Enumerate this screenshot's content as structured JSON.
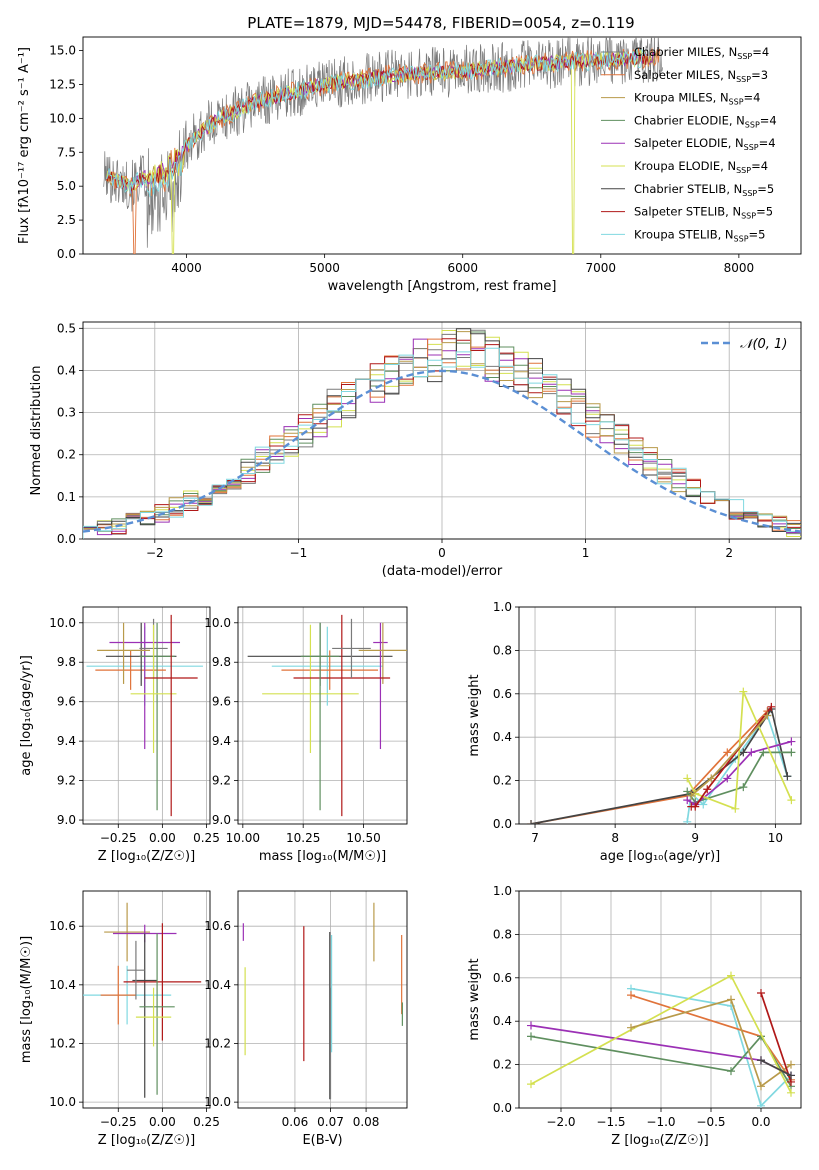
{
  "figure_title": "PLATE=1879, MJD=54478, FIBERID=0054, z=0.119",
  "models": [
    {
      "name": "Chabrier MILES, N",
      "sub": "SSP",
      "tail": "=4",
      "color": "#7a7a7a"
    },
    {
      "name": "Salpeter MILES, N",
      "sub": "SSP",
      "tail": "=3",
      "color": "#e0733a"
    },
    {
      "name": "Kroupa MILES, N",
      "sub": "SSP",
      "tail": "=4",
      "color": "#b89a4a"
    },
    {
      "name": "Chabrier ELODIE, N",
      "sub": "SSP",
      "tail": "=4",
      "color": "#5f8f5f"
    },
    {
      "name": "Salpeter ELODIE, N",
      "sub": "SSP",
      "tail": "=4",
      "color": "#9b30b5"
    },
    {
      "name": "Kroupa ELODIE, N",
      "sub": "SSP",
      "tail": "=4",
      "color": "#d4e050"
    },
    {
      "name": "Chabrier STELIB, N",
      "sub": "SSP",
      "tail": "=5",
      "color": "#444444"
    },
    {
      "name": "Salpeter STELIB, N",
      "sub": "SSP",
      "tail": "=5",
      "color": "#b01818"
    },
    {
      "name": "Kroupa STELIB, N",
      "sub": "SSP",
      "tail": "=5",
      "color": "#80d8e0"
    }
  ],
  "chart_data": [
    {
      "id": "spectrum",
      "type": "line",
      "xlabel": "wavelength [Angstrom, rest frame]",
      "ylabel": "Flux [fλ10⁻¹⁷ erg cm⁻² s⁻¹ A⁻¹]",
      "xlim": [
        3250,
        8450
      ],
      "ylim": [
        0,
        16
      ],
      "xticks": [
        4000,
        5000,
        6000,
        7000,
        8000
      ],
      "yticks": [
        0.0,
        2.5,
        5.0,
        7.5,
        10.0,
        12.5,
        15.0
      ],
      "ytick_labels": [
        "0.0",
        "2.5",
        "5.0",
        "7.5",
        "10.0",
        "12.5",
        "15.0"
      ],
      "legend": "top-right",
      "data_x_range": [
        3400,
        7450
      ],
      "continuum_anchors": {
        "x": [
          3400,
          3600,
          3800,
          4000,
          4200,
          4500,
          5000,
          5500,
          6000,
          6500,
          7000,
          7450
        ],
        "y": [
          5.8,
          5.0,
          6.5,
          8.0,
          9.8,
          11.2,
          12.5,
          13.2,
          13.5,
          14.0,
          14.3,
          14.5
        ]
      },
      "series": [
        {
          "model": 0,
          "noise": 1.9
        },
        {
          "model": 1,
          "noise": 0.8,
          "dips": [
            {
              "x": 3620,
              "y": 0
            }
          ]
        },
        {
          "model": 2,
          "noise": 0.5
        },
        {
          "model": 4,
          "noise": 0.5
        },
        {
          "model": 5,
          "noise": 0.6,
          "dips": [
            {
              "x": 3905,
              "y": 0
            },
            {
              "x": 6800,
              "y": 0
            }
          ]
        },
        {
          "model": 7,
          "noise": 0.5,
          "dips": [
            {
              "x": 7420,
              "y": 0
            }
          ]
        },
        {
          "model": 8,
          "noise": 0.7
        }
      ]
    },
    {
      "id": "residuals",
      "type": "histogram",
      "xlabel": "(data-model)/error",
      "ylabel": "Normed distribution",
      "xlim": [
        -2.5,
        2.5
      ],
      "ylim": [
        0,
        0.515
      ],
      "xticks": [
        -2,
        -1,
        0,
        1,
        2
      ],
      "xtick_labels": [
        "−2",
        "−1",
        "0",
        "1",
        "2"
      ],
      "yticks": [
        0.0,
        0.1,
        0.2,
        0.3,
        0.4,
        0.5
      ],
      "ytick_labels": [
        "0.0",
        "0.1",
        "0.2",
        "0.3",
        "0.4",
        "0.5"
      ],
      "grid": true,
      "legend": "top-right",
      "gaussian_label": "𝒩(0, 1)",
      "gaussian_color": "#5b8fd4",
      "bin_width": 0.1,
      "bins_start": -2.5,
      "base_counts": [
        0.02,
        0.025,
        0.03,
        0.04,
        0.05,
        0.06,
        0.075,
        0.09,
        0.105,
        0.12,
        0.14,
        0.16,
        0.185,
        0.21,
        0.235,
        0.26,
        0.285,
        0.31,
        0.33,
        0.355,
        0.375,
        0.39,
        0.405,
        0.42,
        0.43,
        0.44,
        0.445,
        0.44,
        0.43,
        0.415,
        0.4,
        0.38,
        0.36,
        0.335,
        0.31,
        0.285,
        0.26,
        0.235,
        0.21,
        0.185,
        0.16,
        0.14,
        0.12,
        0.1,
        0.085,
        0.07,
        0.055,
        0.045,
        0.035,
        0.025
      ]
    },
    {
      "id": "age_vs_Z",
      "type": "errorbar",
      "xlabel": "Z [log₁₀(Z/Z☉)]",
      "ylabel": "age  [log₁₀(age/yr)]",
      "xlim": [
        -0.45,
        0.27
      ],
      "ylim": [
        8.98,
        10.08
      ],
      "xticks": [
        -0.25,
        0.0,
        0.25
      ],
      "xtick_labels": [
        "−0.25",
        "0.00",
        "0.25"
      ],
      "yticks": [
        9.0,
        9.2,
        9.4,
        9.6,
        9.8,
        10.0
      ],
      "ytick_labels": [
        "9.0",
        "9.2",
        "9.4",
        "9.6",
        "9.8",
        "10.0"
      ],
      "grid": true,
      "points": [
        {
          "model": 8,
          "x": -0.1,
          "xerr": 0.33,
          "y": 9.78,
          "yerr": [
            0.2,
            0.2
          ]
        },
        {
          "model": 1,
          "x": -0.18,
          "xerr": 0.2,
          "y": 9.76,
          "yerr": [
            0.1,
            0.1
          ]
        },
        {
          "model": 6,
          "x": -0.12,
          "xerr": 0.2,
          "y": 9.83,
          "yerr": [
            0.15,
            0.17
          ]
        },
        {
          "model": 4,
          "x": -0.1,
          "xerr": 0.2,
          "y": 9.9,
          "yerr": [
            0.54,
            0.1
          ]
        },
        {
          "model": 0,
          "x": -0.05,
          "xerr": 0.08,
          "y": 9.87,
          "yerr": [
            0.15,
            0.15
          ]
        },
        {
          "model": 3,
          "x": -0.03,
          "xerr": 0.1,
          "y": 9.83,
          "yerr": [
            0.78,
            0.17
          ]
        },
        {
          "model": 5,
          "x": -0.05,
          "xerr": 0.13,
          "y": 9.64,
          "yerr": [
            0.3,
            0.35
          ]
        },
        {
          "model": 7,
          "x": 0.05,
          "xerr": 0.15,
          "y": 9.72,
          "yerr": [
            0.7,
            0.32
          ]
        },
        {
          "model": 2,
          "x": -0.22,
          "xerr": 0.15,
          "y": 9.86,
          "yerr": [
            0.17,
            0.14
          ]
        }
      ]
    },
    {
      "id": "age_vs_mass",
      "type": "errorbar",
      "xlabel": "mass [log₁₀(M/M☉)]",
      "ylabel": "",
      "xlim": [
        9.98,
        10.68
      ],
      "ylim": [
        8.98,
        10.08
      ],
      "xticks": [
        10.0,
        10.25,
        10.5
      ],
      "xtick_labels": [
        "10.00",
        "10.25",
        "10.50"
      ],
      "yticks": [
        9.0,
        9.2,
        9.4,
        9.6,
        9.8,
        10.0
      ],
      "ytick_labels": [
        "9.0",
        "9.2",
        "9.4",
        "9.6",
        "9.8",
        "10.0"
      ],
      "grid": true,
      "points": [
        {
          "model": 6,
          "x": 10.32,
          "xerr": 0.3,
          "y": 9.83,
          "yerr": [
            0.15,
            0.17
          ]
        },
        {
          "model": 8,
          "x": 10.35,
          "xerr": 0.23,
          "y": 9.78,
          "yerr": [
            0.2,
            0.2
          ]
        },
        {
          "model": 1,
          "x": 10.36,
          "xerr": 0.2,
          "y": 9.76,
          "yerr": [
            0.1,
            0.1
          ]
        },
        {
          "model": 4,
          "x": 10.57,
          "xerr": 0.03,
          "y": 9.9,
          "yerr": [
            0.54,
            0.1
          ]
        },
        {
          "model": 2,
          "x": 10.58,
          "xerr": 0.1,
          "y": 9.86,
          "yerr": [
            0.17,
            0.14
          ]
        },
        {
          "model": 5,
          "x": 10.28,
          "xerr": 0.2,
          "y": 9.64,
          "yerr": [
            0.3,
            0.35
          ]
        },
        {
          "model": 7,
          "x": 10.41,
          "xerr": 0.2,
          "y": 9.72,
          "yerr": [
            0.7,
            0.32
          ]
        },
        {
          "model": 3,
          "x": 10.32,
          "xerr": 0.08,
          "y": 9.83,
          "yerr": [
            0.78,
            0.17
          ]
        },
        {
          "model": 0,
          "x": 10.45,
          "xerr": 0.08,
          "y": 9.87,
          "yerr": [
            0.15,
            0.15
          ]
        }
      ]
    },
    {
      "id": "mass_weight_vs_age",
      "type": "line",
      "xlabel": "age  [log₁₀(age/yr)]",
      "ylabel": "mass weight",
      "xlim": [
        6.8,
        10.32
      ],
      "ylim": [
        0,
        1
      ],
      "xticks": [
        7,
        8,
        9,
        10
      ],
      "xtick_labels": [
        "7",
        "8",
        "9",
        "10"
      ],
      "yticks": [
        0.0,
        0.2,
        0.4,
        0.6,
        0.8,
        1.0
      ],
      "ytick_labels": [
        "0.0",
        "0.2",
        "0.4",
        "0.6",
        "0.8",
        "1.0"
      ],
      "grid": true,
      "series": [
        {
          "model": 8,
          "x": [
            8.9,
            8.95,
            9.1,
            9.5,
            9.9,
            10.15
          ],
          "y": [
            0.01,
            0.14,
            0.09,
            0.3,
            0.5,
            0.22
          ]
        },
        {
          "model": 1,
          "x": [
            6.95,
            8.9,
            9.4,
            9.9
          ],
          "y": [
            0.0,
            0.13,
            0.33,
            0.52
          ]
        },
        {
          "model": 6,
          "x": [
            6.95,
            8.95,
            9.6,
            9.95,
            10.15
          ],
          "y": [
            0.0,
            0.14,
            0.33,
            0.53,
            0.22
          ]
        },
        {
          "model": 3,
          "x": [
            8.9,
            9.0,
            9.6,
            9.85,
            10.2
          ],
          "y": [
            0.15,
            0.1,
            0.17,
            0.33,
            0.33
          ]
        },
        {
          "model": 4,
          "x": [
            8.9,
            9.0,
            9.4,
            9.7,
            10.2
          ],
          "y": [
            0.11,
            0.09,
            0.21,
            0.33,
            0.38
          ]
        },
        {
          "model": 5,
          "x": [
            8.9,
            9.0,
            9.5,
            9.6,
            10.2
          ],
          "y": [
            0.21,
            0.14,
            0.07,
            0.61,
            0.11
          ]
        },
        {
          "model": 7,
          "x": [
            8.95,
            9.0,
            9.15,
            9.95
          ],
          "y": [
            0.08,
            0.08,
            0.16,
            0.54
          ]
        },
        {
          "model": 2,
          "x": [
            8.95,
            9.2,
            9.9
          ],
          "y": [
            0.13,
            0.21,
            0.5
          ]
        }
      ]
    },
    {
      "id": "mass_vs_Z",
      "type": "errorbar",
      "xlabel": "Z [log₁₀(Z/Z☉)]",
      "ylabel": "mass [log₁₀(M/M☉)]",
      "xlim": [
        -0.45,
        0.27
      ],
      "ylim": [
        9.98,
        10.72
      ],
      "xticks": [
        -0.25,
        0.0,
        0.25
      ],
      "xtick_labels": [
        "−0.25",
        "0.00",
        "0.25"
      ],
      "yticks": [
        10.0,
        10.2,
        10.4,
        10.6
      ],
      "ytick_labels": [
        "10.0",
        "10.2",
        "10.4",
        "10.6"
      ],
      "grid": true,
      "points": [
        {
          "model": 2,
          "x": -0.2,
          "xerr": 0.13,
          "y": 10.58,
          "yerr": [
            0.1,
            0.1
          ]
        },
        {
          "model": 4,
          "x": -0.1,
          "xerr": 0.18,
          "y": 10.575,
          "yerr": [
            0.03,
            0.03
          ]
        },
        {
          "model": 8,
          "x": -0.2,
          "xerr": 0.25,
          "y": 10.365,
          "yerr": [
            0.1,
            0.1
          ]
        },
        {
          "model": 1,
          "x": -0.25,
          "xerr": 0.1,
          "y": 10.365,
          "yerr": [
            0.1,
            0.1
          ]
        },
        {
          "model": 6,
          "x": -0.1,
          "xerr": 0.07,
          "y": 10.415,
          "yerr": [
            0.4,
            0.16
          ]
        },
        {
          "model": 7,
          "x": 0.0,
          "xerr": 0.22,
          "y": 10.41,
          "yerr": [
            0.2,
            0.2
          ]
        },
        {
          "model": 3,
          "x": -0.03,
          "xerr": 0.1,
          "y": 10.325,
          "yerr": [
            0.3,
            0.25
          ]
        },
        {
          "model": 5,
          "x": -0.05,
          "xerr": 0.1,
          "y": 10.29,
          "yerr": [
            0.1,
            0.1
          ]
        },
        {
          "model": 0,
          "x": -0.15,
          "xerr": 0.05,
          "y": 10.45,
          "yerr": [
            0.1,
            0.1
          ]
        }
      ]
    },
    {
      "id": "mass_vs_ebv",
      "type": "errorbar",
      "xlabel": "E(B-V)",
      "ylabel": "",
      "xlim": [
        0.044,
        0.0915
      ],
      "ylim": [
        9.98,
        10.72
      ],
      "xticks": [
        0.06,
        0.07,
        0.08
      ],
      "xtick_labels": [
        "0.06",
        "0.07",
        "0.08"
      ],
      "yticks": [
        10.0,
        10.2,
        10.4,
        10.6
      ],
      "ytick_labels": [
        "10.0",
        "10.2",
        "10.4",
        "10.6"
      ],
      "grid": true,
      "points": [
        {
          "model": 4,
          "x": 0.0455,
          "xerr": 0,
          "y": 10.58,
          "yerr": [
            0.03,
            0.03
          ]
        },
        {
          "model": 5,
          "x": 0.046,
          "xerr": 0,
          "y": 10.3,
          "yerr": [
            0.14,
            0.16
          ]
        },
        {
          "model": 7,
          "x": 0.0625,
          "xerr": 0,
          "y": 10.37,
          "yerr": [
            0.23,
            0.23
          ]
        },
        {
          "model": 6,
          "x": 0.0698,
          "xerr": 0,
          "y": 10.3,
          "yerr": [
            0.29,
            0.28
          ]
        },
        {
          "model": 0,
          "x": 0.07,
          "xerr": 0,
          "y": 10.2,
          "yerr": [
            0.19,
            0.19
          ]
        },
        {
          "model": 8,
          "x": 0.0703,
          "xerr": 0,
          "y": 10.37,
          "yerr": [
            0.2,
            0.2
          ]
        },
        {
          "model": 2,
          "x": 0.0822,
          "xerr": 0,
          "y": 10.58,
          "yerr": [
            0.1,
            0.1
          ]
        },
        {
          "model": 1,
          "x": 0.09,
          "xerr": 0,
          "y": 10.44,
          "yerr": [
            0.14,
            0.13
          ]
        },
        {
          "model": 3,
          "x": 0.0902,
          "xerr": 0,
          "y": 10.3,
          "yerr": [
            0.04,
            0.04
          ]
        }
      ]
    },
    {
      "id": "mass_weight_vs_Z",
      "type": "line",
      "xlabel": "Z [log₁₀(Z/Z☉)]",
      "ylabel": "mass weight",
      "xlim": [
        -2.42,
        0.4
      ],
      "ylim": [
        0,
        1
      ],
      "xticks": [
        -2.0,
        -1.5,
        -1.0,
        -0.5,
        0.0
      ],
      "xtick_labels": [
        "−2.0",
        "−1.5",
        "−1.0",
        "−0.5",
        "0.0"
      ],
      "yticks": [
        0.0,
        0.2,
        0.4,
        0.6,
        0.8,
        1.0
      ],
      "ytick_labels": [
        "0.0",
        "0.2",
        "0.4",
        "0.6",
        "0.8",
        "1.0"
      ],
      "grid": true,
      "series": [
        {
          "model": 8,
          "x": [
            -1.3,
            -0.3,
            0.0,
            0.3
          ],
          "y": [
            0.55,
            0.47,
            0.01,
            0.15
          ]
        },
        {
          "model": 1,
          "x": [
            -1.3,
            0.0,
            0.3
          ],
          "y": [
            0.52,
            0.33,
            0.13
          ]
        },
        {
          "model": 4,
          "x": [
            -2.3,
            0.0,
            0.3
          ],
          "y": [
            0.38,
            0.22,
            0.15
          ]
        },
        {
          "model": 3,
          "x": [
            -2.3,
            -0.3,
            0.0,
            0.3
          ],
          "y": [
            0.33,
            0.17,
            0.33,
            0.1
          ]
        },
        {
          "model": 5,
          "x": [
            -2.3,
            -0.3,
            0.3
          ],
          "y": [
            0.11,
            0.61,
            0.07
          ]
        },
        {
          "model": 2,
          "x": [
            -1.3,
            -0.3,
            0.0,
            0.3
          ],
          "y": [
            0.37,
            0.5,
            0.1,
            0.2
          ]
        },
        {
          "model": 7,
          "x": [
            0.0,
            0.3
          ],
          "y": [
            0.53,
            0.12
          ]
        },
        {
          "model": 6,
          "x": [
            0.0,
            0.3
          ],
          "y": [
            0.22,
            0.15
          ]
        }
      ]
    }
  ]
}
